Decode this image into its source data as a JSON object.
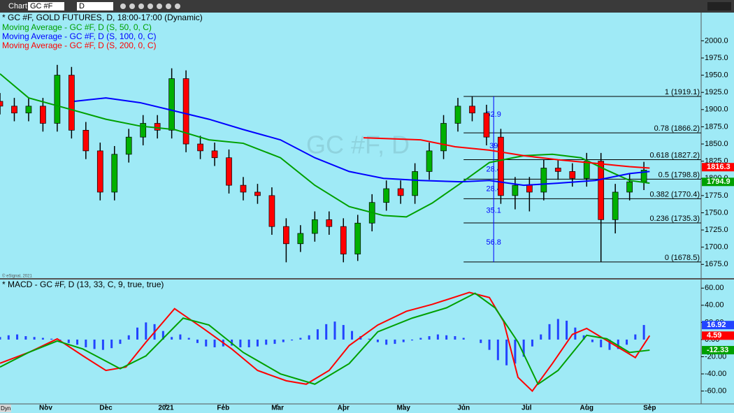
{
  "toolbar": {
    "tab": "Chart",
    "symbol": "GC #F",
    "interval": "D",
    "mode": "Dyn"
  },
  "watermark": "GC #F, D",
  "copyright": "© eSignal, 2021",
  "chart_data": [
    {
      "type": "candlestick",
      "title": "* GC #F, GOLD FUTURES, D, 18:00-17:00 (Dynamic)",
      "x": [
        0,
        5,
        10,
        15,
        20,
        25,
        30,
        35,
        40,
        45,
        50,
        55,
        60,
        65,
        70,
        75,
        80,
        85,
        90,
        95,
        100,
        105,
        110,
        115,
        120,
        125,
        130,
        135,
        140,
        145,
        150,
        155,
        160,
        165,
        170,
        175,
        180,
        185,
        190,
        195,
        200,
        205,
        210,
        215,
        220,
        225
      ],
      "open": [
        1912,
        1905,
        1895,
        1905,
        1880,
        1950,
        1870,
        1840,
        1780,
        1835,
        1860,
        1880,
        1870,
        1945,
        1850,
        1840,
        1830,
        1790,
        1780,
        1775,
        1730,
        1705,
        1720,
        1740,
        1730,
        1690,
        1735,
        1765,
        1785,
        1775,
        1810,
        1840,
        1880,
        1905,
        1895,
        1860,
        1775,
        1790,
        1780,
        1815,
        1810,
        1800,
        1825,
        1740,
        1780,
        1795
      ],
      "high": [
        1924,
        1917,
        1917,
        1917,
        1965,
        1962,
        1882,
        1852,
        1847,
        1872,
        1892,
        1892,
        1960,
        1957,
        1862,
        1852,
        1842,
        1802,
        1792,
        1787,
        1742,
        1732,
        1752,
        1752,
        1742,
        1747,
        1777,
        1797,
        1797,
        1822,
        1852,
        1892,
        1917,
        1919,
        1907,
        1872,
        1802,
        1802,
        1827,
        1827,
        1822,
        1837,
        1837,
        1792,
        1807,
        1824
      ],
      "low": [
        1893,
        1883,
        1883,
        1868,
        1868,
        1858,
        1828,
        1768,
        1768,
        1823,
        1848,
        1858,
        1858,
        1838,
        1828,
        1818,
        1778,
        1768,
        1763,
        1718,
        1678,
        1693,
        1708,
        1718,
        1678,
        1680,
        1723,
        1753,
        1763,
        1763,
        1798,
        1828,
        1868,
        1883,
        1848,
        1763,
        1755,
        1752,
        1768,
        1798,
        1788,
        1788,
        1679,
        1720,
        1768,
        1783
      ],
      "close": [
        1905,
        1895,
        1905,
        1880,
        1950,
        1870,
        1840,
        1780,
        1835,
        1860,
        1880,
        1870,
        1945,
        1850,
        1840,
        1830,
        1790,
        1780,
        1775,
        1730,
        1705,
        1720,
        1740,
        1730,
        1690,
        1735,
        1765,
        1785,
        1775,
        1810,
        1840,
        1880,
        1905,
        1895,
        1860,
        1775,
        1790,
        1780,
        1815,
        1810,
        1800,
        1825,
        1740,
        1780,
        1795,
        1812
      ],
      "up_color": "#00b000",
      "down_color": "#ff0000",
      "series": [
        {
          "name": "Moving Average - GC #F, D (S, 50, 0, C)",
          "color": "#00a000",
          "x": [
            0,
            10,
            24,
            37,
            49,
            61,
            73,
            85,
            98,
            110,
            122,
            134,
            142,
            151,
            161,
            171,
            183,
            193,
            203,
            212,
            220,
            227
          ],
          "values": [
            1952,
            1917,
            1901,
            1886,
            1876,
            1871,
            1856,
            1851,
            1830,
            1790,
            1759,
            1746,
            1744,
            1764,
            1793,
            1823,
            1833,
            1835,
            1830,
            1812,
            1797,
            1793
          ]
        },
        {
          "name": "Moving Average - GC #F, D (S, 100, 0, C)",
          "color": "#0000ff",
          "x": [
            26,
            37,
            49,
            61,
            73,
            85,
            98,
            110,
            122,
            134,
            147,
            161,
            171,
            183,
            195,
            208,
            220,
            227
          ],
          "values": [
            1912,
            1917,
            1910,
            1898,
            1886,
            1871,
            1856,
            1830,
            1810,
            1800,
            1797,
            1795,
            1797,
            1790,
            1793,
            1797,
            1807,
            1810
          ]
        },
        {
          "name": "Moving Average - GC #F, D (S, 200, 0, C)",
          "color": "#ff0000",
          "x": [
            127,
            147,
            159,
            171,
            183,
            195,
            208,
            220,
            227
          ],
          "values": [
            1859,
            1856,
            1846,
            1841,
            1833,
            1827,
            1822,
            1817,
            1815
          ]
        }
      ],
      "fib_anchor_x": 162,
      "fib_levels": [
        {
          "value": 1919.1,
          "label": "1 (1919.1)"
        },
        {
          "value": 1866.2,
          "label": "0.78 (1866.2)"
        },
        {
          "value": 1827.2,
          "label": "0.618 (1827.2)"
        },
        {
          "value": 1798.8,
          "label": "0.5 (1798.8)"
        },
        {
          "value": 1770.4,
          "label": "0.382 (1770.4)"
        },
        {
          "value": 1735.3,
          "label": "0.236 (1735.3)"
        },
        {
          "value": 1678.5,
          "label": "0 (1678.5)"
        }
      ],
      "fib_diffs": [
        52.9,
        39.0,
        28.4,
        28.4,
        35.1,
        56.8
      ],
      "price_tags": [
        {
          "value": 1816.3,
          "color": "#ff0000"
        },
        {
          "value": 1794.9,
          "color": "#00a000"
        }
      ],
      "xlim": [
        0,
        245
      ],
      "ylim": [
        1655,
        2041
      ],
      "yticks": [
        {
          "value": 2000,
          "label": "2000.0"
        },
        {
          "value": 1975,
          "label": "1975.0"
        },
        {
          "value": 1950,
          "label": "1950.0"
        },
        {
          "value": 1925,
          "label": "1925.0"
        },
        {
          "value": 1900,
          "label": "1900.0"
        },
        {
          "value": 1875,
          "label": "1875.0"
        },
        {
          "value": 1850,
          "label": "1850.0"
        },
        {
          "value": 1825,
          "label": "1825.0"
        },
        {
          "value": 1800,
          "label": "1800.0"
        },
        {
          "value": 1775,
          "label": "1775.0"
        },
        {
          "value": 1750,
          "label": "1750.0"
        },
        {
          "value": 1725,
          "label": "1725.0"
        },
        {
          "value": 1700,
          "label": "1700.0"
        },
        {
          "value": 1675,
          "label": "1675.0"
        }
      ]
    },
    {
      "type": "macd",
      "title": "* MACD - GC #F, D (13, 33, C, 9, true, true)",
      "series": [
        {
          "color": "#ff0000",
          "x": [
            0,
            10,
            20,
            29,
            37,
            44,
            51,
            61,
            71,
            81,
            90,
            100,
            107,
            115,
            122,
            132,
            142,
            151,
            164,
            171,
            176,
            181,
            186,
            193,
            200,
            205,
            213,
            222,
            227
          ],
          "values": [
            -27.6,
            -15,
            0.8,
            -19,
            -36,
            -32,
            -3,
            36,
            13,
            -11,
            -36,
            -48,
            -52,
            -36,
            -7,
            17,
            33,
            41,
            55,
            49,
            21,
            -44,
            -60,
            -28,
            6,
            13,
            -3,
            -21,
            4.59
          ]
        },
        {
          "color": "#00a000",
          "x": [
            0,
            10,
            20,
            29,
            42,
            51,
            64,
            73,
            85,
            98,
            110,
            122,
            132,
            144,
            156,
            166,
            173,
            181,
            188,
            195,
            205,
            212,
            220,
            227
          ],
          "values": [
            -32,
            -15,
            -1.6,
            -11,
            -34,
            -19,
            25,
            17,
            -15,
            -40,
            -52,
            -28,
            9,
            25,
            37,
            54,
            37,
            -3,
            -52,
            -36,
            5,
            1,
            -15,
            -12.33
          ]
        }
      ],
      "histogram": {
        "color": "#2244ff",
        "x": [
          0,
          3,
          6,
          9,
          12,
          15,
          18,
          21,
          24,
          27,
          30,
          33,
          36,
          39,
          42,
          45,
          48,
          51,
          54,
          57,
          60,
          63,
          66,
          69,
          72,
          75,
          78,
          81,
          84,
          87,
          90,
          93,
          96,
          99,
          102,
          105,
          108,
          111,
          114,
          117,
          120,
          123,
          126,
          129,
          132,
          135,
          138,
          141,
          144,
          147,
          150,
          153,
          156,
          159,
          162,
          165,
          168,
          171,
          174,
          177,
          180,
          183,
          186,
          189,
          192,
          195,
          198,
          201,
          204,
          207,
          210,
          213,
          216,
          219,
          222,
          225
        ],
        "values": [
          3,
          5,
          6,
          4,
          3,
          2,
          1,
          -2,
          -4,
          -6,
          -9,
          -11,
          -12,
          -10,
          -5,
          5,
          14,
          20,
          18,
          10,
          3,
          6,
          2,
          -4,
          -8,
          -9,
          -8,
          -7,
          -9,
          -9,
          -8,
          -6,
          -5,
          -3,
          -1,
          2,
          5,
          12,
          18,
          21,
          17,
          10,
          4,
          1,
          -3,
          -6,
          -5,
          -3,
          -1,
          2,
          4,
          6,
          5,
          4,
          2,
          0,
          -4,
          -12,
          -24,
          -30,
          -28,
          -20,
          -8,
          6,
          18,
          24,
          22,
          14,
          5,
          -3,
          -9,
          -12,
          -11,
          -6,
          6,
          17
        ]
      },
      "tags": [
        {
          "value": 16.92,
          "color": "#2244ff"
        },
        {
          "value": 4.59,
          "color": "#ff0000"
        },
        {
          "value": -12.33,
          "color": "#00a000"
        }
      ],
      "xlim": [
        0,
        245
      ],
      "ylim": [
        -75,
        70
      ],
      "yticks": [
        {
          "value": 60,
          "label": "60.00"
        },
        {
          "value": 40,
          "label": "40.00"
        },
        {
          "value": 20,
          "label": "20.00"
        },
        {
          "value": 0,
          "label": "0.00"
        },
        {
          "value": -20,
          "label": "-20.00"
        },
        {
          "value": -40,
          "label": "-40.00"
        },
        {
          "value": -60,
          "label": "-60.00"
        }
      ],
      "xticks": [
        {
          "value": 16,
          "label": "Nov"
        },
        {
          "value": 37,
          "label": "Dec"
        },
        {
          "value": 58,
          "label": "2021"
        },
        {
          "value": 78,
          "label": "Feb"
        },
        {
          "value": 97,
          "label": "Mar"
        },
        {
          "value": 120,
          "label": "Apr"
        },
        {
          "value": 141,
          "label": "May"
        },
        {
          "value": 162,
          "label": "Jun"
        },
        {
          "value": 184,
          "label": "Jul"
        },
        {
          "value": 205,
          "label": "Aug"
        },
        {
          "value": 227,
          "label": "Sep"
        }
      ]
    }
  ]
}
